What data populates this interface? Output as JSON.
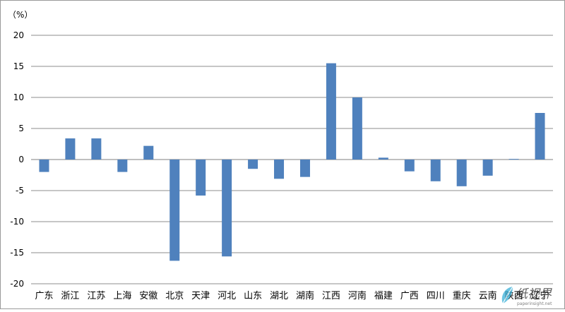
{
  "chart_data": {
    "type": "bar",
    "title": "",
    "unit_label": "（%）",
    "xlabel": "",
    "ylabel": "",
    "ylim": [
      -20,
      20
    ],
    "yticks": [
      20,
      15,
      10,
      5,
      0,
      -5,
      -10,
      -15,
      -20
    ],
    "grid": true,
    "legend": "none",
    "bar_color": "#4f81bd",
    "categories": [
      "广东",
      "浙江",
      "江苏",
      "上海",
      "安徽",
      "北京",
      "天津",
      "河北",
      "山东",
      "湖北",
      "湖南",
      "江西",
      "河南",
      "福建",
      "广西",
      "四川",
      "重庆",
      "云南",
      "陕西",
      "辽宁"
    ],
    "values": [
      -2.0,
      3.4,
      3.4,
      -2.0,
      2.2,
      -16.3,
      -5.8,
      -15.6,
      -1.5,
      -3.1,
      -2.8,
      15.5,
      10.0,
      0.3,
      -1.9,
      -3.5,
      -4.3,
      -2.6,
      0.1,
      7.5
    ]
  },
  "watermark": {
    "brand": "纸视界",
    "site": "paperinsight.net"
  }
}
